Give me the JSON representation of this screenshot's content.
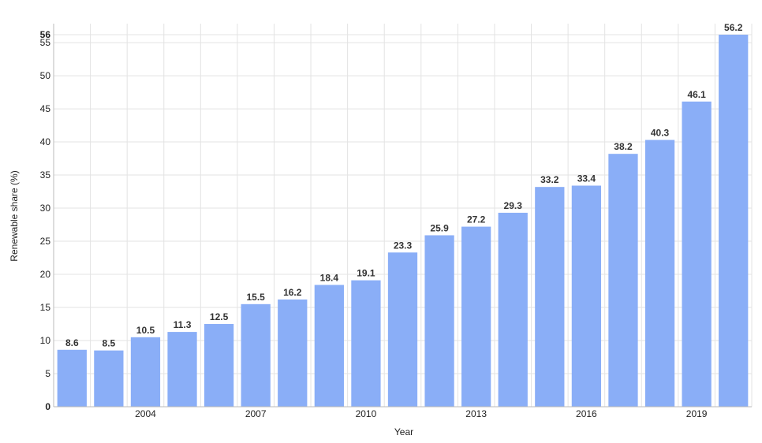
{
  "chart_data": {
    "type": "bar",
    "categories": [
      "2002",
      "2003",
      "2004",
      "2005",
      "2006",
      "2007",
      "2008",
      "2009",
      "2010",
      "2011",
      "2012",
      "2013",
      "2014",
      "2015",
      "2016",
      "2017",
      "2018",
      "2019",
      "2020"
    ],
    "values": [
      8.6,
      8.5,
      10.5,
      11.3,
      12.5,
      15.5,
      16.2,
      18.4,
      19.1,
      23.3,
      25.9,
      27.2,
      29.3,
      33.2,
      33.4,
      38.2,
      40.3,
      46.1,
      56.2
    ],
    "value_labels": [
      "8.6",
      "8.5",
      "10.5",
      "11.3",
      "12.5",
      "15.5",
      "16.2",
      "18.4",
      "19.1",
      "23.3",
      "25.9",
      "27.2",
      "29.3",
      "33.2",
      "33.4",
      "38.2",
      "40.3",
      "46.1",
      "56.2"
    ],
    "x_tick_labels": [
      "2004",
      "2007",
      "2010",
      "2013",
      "2016",
      "2019"
    ],
    "y_ticks": [
      0,
      5,
      10,
      15,
      20,
      25,
      30,
      35,
      40,
      45,
      50,
      55
    ],
    "y_tick_labels": [
      "0",
      "5",
      "10",
      "15",
      "20",
      "25",
      "30",
      "35",
      "40",
      "45",
      "50",
      "55"
    ],
    "y_max_label": "56",
    "ylim": [
      0,
      56.2
    ],
    "xlabel": "Year",
    "ylabel": "Renewable share (%)",
    "bar_color": "#8aaef7",
    "grid": true,
    "legend": "none"
  }
}
